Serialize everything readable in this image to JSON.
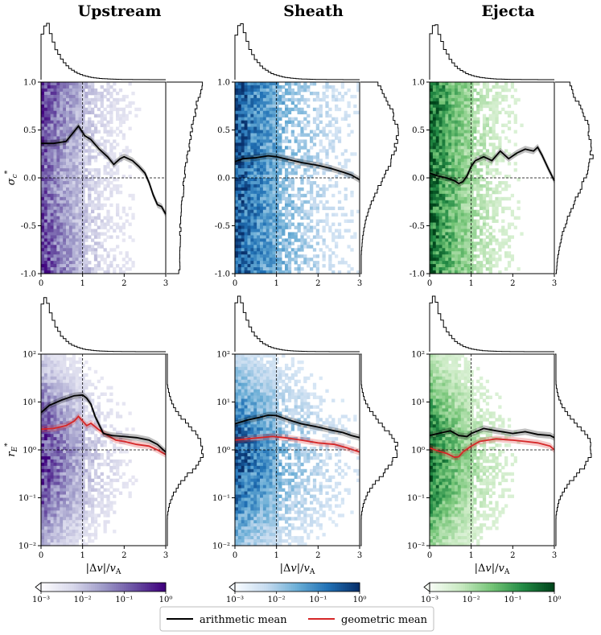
{
  "chart_data": {
    "type": "heatmap",
    "columns": [
      {
        "title": "Upstream",
        "cmap": [
          "#fcfbfd",
          "#d8d8eb",
          "#9e9ac8",
          "#6a51a3",
          "#3f007d"
        ]
      },
      {
        "title": "Sheath",
        "cmap": [
          "#f7fbff",
          "#c6dbef",
          "#6baed6",
          "#2171b5",
          "#08306b"
        ]
      },
      {
        "title": "Ejecta",
        "cmap": [
          "#f7fcf5",
          "#c7e9c0",
          "#74c476",
          "#238b45",
          "#00441b"
        ]
      }
    ],
    "xlabel_html": "|Δ<i>v</i>|/<i>v</i>",
    "xlabel_sub": "A",
    "xlabel": "|Δv|/vA",
    "xlim": [
      0,
      3
    ],
    "xticks": [
      "0",
      "1",
      "2",
      "3"
    ],
    "vline_x": 1,
    "rows": [
      {
        "ylabel": "σc*",
        "yscale": "linear",
        "ylim": [
          -1.0,
          1.0
        ],
        "yticks": [
          "-1.0",
          "-0.5",
          "0.0",
          "0.5",
          "1.0"
        ],
        "hline_y": 0.0,
        "series": {
          "Upstream": {
            "arith": {
              "x": [
                0,
                0.3,
                0.6,
                0.75,
                0.9,
                1.05,
                1.2,
                1.4,
                1.6,
                1.75,
                1.9,
                2.0,
                2.2,
                2.35,
                2.5,
                2.6,
                2.7,
                2.8,
                2.9,
                3.0
              ],
              "y": [
                0.36,
                0.36,
                0.38,
                0.46,
                0.54,
                0.44,
                0.4,
                0.3,
                0.22,
                0.14,
                0.2,
                0.22,
                0.18,
                0.12,
                0.05,
                -0.05,
                -0.18,
                -0.28,
                -0.3,
                -0.38
              ]
            }
          },
          "Sheath": {
            "arith": {
              "x": [
                0,
                0.2,
                0.5,
                0.8,
                1.0,
                1.3,
                1.6,
                2.0,
                2.3,
                2.6,
                2.8,
                3.0
              ],
              "y": [
                0.17,
                0.2,
                0.21,
                0.23,
                0.22,
                0.19,
                0.16,
                0.13,
                0.1,
                0.06,
                0.03,
                -0.02
              ]
            }
          },
          "Ejecta": {
            "arith": {
              "x": [
                0,
                0.2,
                0.4,
                0.6,
                0.7,
                0.8,
                0.9,
                1.0,
                1.1,
                1.3,
                1.5,
                1.7,
                1.9,
                2.1,
                2.3,
                2.5,
                2.6,
                2.7,
                2.85,
                3.0
              ],
              "y": [
                0.05,
                0.02,
                0.0,
                -0.03,
                -0.06,
                -0.04,
                0.02,
                0.12,
                0.18,
                0.22,
                0.18,
                0.28,
                0.2,
                0.26,
                0.3,
                0.28,
                0.32,
                0.24,
                0.1,
                -0.03
              ]
            }
          }
        }
      },
      {
        "ylabel": "rE*",
        "yscale": "log",
        "ylim": [
          0.01,
          100
        ],
        "yticks": [
          "10⁻²",
          "10⁻¹",
          "10⁰",
          "10¹",
          "10²"
        ],
        "hline_y": 1,
        "series": {
          "Upstream": {
            "arith": {
              "x": [
                0,
                0.2,
                0.5,
                0.8,
                1.0,
                1.1,
                1.2,
                1.3,
                1.5,
                1.7,
                2.0,
                2.3,
                2.6,
                2.8,
                3.0
              ],
              "y": [
                6.0,
                8.5,
                11.0,
                13.5,
                14.0,
                12.0,
                9.0,
                5.0,
                2.2,
                2.0,
                1.9,
                1.8,
                1.6,
                1.3,
                0.9
              ]
            },
            "geo": {
              "x": [
                0,
                0.3,
                0.6,
                0.8,
                0.9,
                1.0,
                1.1,
                1.2,
                1.4,
                1.6,
                1.8,
                2.0,
                2.3,
                2.6,
                2.8,
                3.0
              ],
              "y": [
                2.7,
                2.8,
                3.2,
                4.0,
                5.0,
                4.0,
                3.2,
                3.6,
                2.6,
                2.0,
                1.6,
                1.5,
                1.3,
                1.2,
                1.0,
                0.8
              ]
            }
          },
          "Sheath": {
            "arith": {
              "x": [
                0,
                0.3,
                0.6,
                0.8,
                1.0,
                1.3,
                1.6,
                2.0,
                2.3,
                2.6,
                2.8,
                3.0
              ],
              "y": [
                3.5,
                4.2,
                4.8,
                5.3,
                5.2,
                4.2,
                3.5,
                3.0,
                2.6,
                2.3,
                2.0,
                1.8
              ]
            },
            "geo": {
              "x": [
                0,
                0.3,
                0.6,
                0.9,
                1.2,
                1.6,
                2.0,
                2.4,
                2.7,
                3.0
              ],
              "y": [
                1.6,
                1.7,
                1.8,
                1.9,
                1.8,
                1.6,
                1.4,
                1.3,
                1.1,
                0.9
              ]
            }
          },
          "Ejecta": {
            "arith": {
              "x": [
                0,
                0.3,
                0.5,
                0.7,
                0.9,
                1.0,
                1.3,
                1.6,
                2.0,
                2.3,
                2.6,
                2.9,
                3.0
              ],
              "y": [
                2.0,
                2.3,
                2.5,
                2.0,
                1.9,
                2.2,
                2.8,
                2.5,
                2.2,
                2.4,
                2.1,
                2.0,
                1.8
              ]
            },
            "geo": {
              "x": [
                0,
                0.2,
                0.4,
                0.6,
                0.7,
                0.8,
                1.0,
                1.2,
                1.4,
                1.6,
                2.0,
                2.3,
                2.6,
                2.9,
                3.0
              ],
              "y": [
                1.1,
                0.95,
                0.85,
                0.7,
                0.72,
                0.9,
                1.2,
                1.5,
                1.6,
                1.7,
                1.6,
                1.5,
                1.4,
                1.2,
                1.0
              ]
            }
          }
        }
      }
    ],
    "colorbar": {
      "ticks": [
        "10⁻³",
        "10⁻²",
        "10⁻¹",
        "10⁰"
      ],
      "range": [
        0.001,
        1
      ]
    },
    "legend": {
      "arith_label": "arithmetic mean",
      "geo_label": "geometric mean",
      "arith_color": "#000000",
      "geo_color": "#d62728"
    }
  }
}
